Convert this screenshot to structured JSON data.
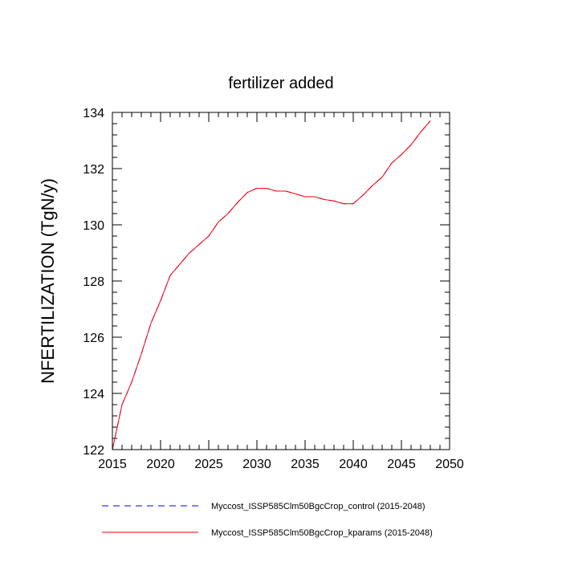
{
  "chart_data": {
    "type": "line",
    "title": "fertilizer added",
    "xlabel": "",
    "ylabel": "NFERTILIZATION  (TgN/y)",
    "xlim": [
      2015,
      2050
    ],
    "ylim": [
      122,
      134
    ],
    "x_ticks": [
      2015,
      2020,
      2025,
      2030,
      2035,
      2040,
      2045,
      2050
    ],
    "y_ticks": [
      122,
      124,
      126,
      128,
      130,
      132,
      134
    ],
    "x_tick_labels": [
      "2015",
      "2020",
      "2025",
      "2030",
      "2035",
      "2040",
      "2045",
      "2050"
    ],
    "y_tick_labels": [
      "122",
      "124",
      "126",
      "128",
      "130",
      "132",
      "134"
    ],
    "grid": false,
    "legend_position": "bottom",
    "x": [
      2015,
      2016,
      2017,
      2018,
      2019,
      2020,
      2021,
      2022,
      2023,
      2024,
      2025,
      2026,
      2027,
      2028,
      2029,
      2030,
      2031,
      2032,
      2033,
      2034,
      2035,
      2036,
      2037,
      2038,
      2039,
      2040,
      2041,
      2042,
      2043,
      2044,
      2045,
      2046,
      2047,
      2048
    ],
    "series": [
      {
        "name": "Myccost_ISSP585Clm50BgcCrop_control (2015-2048)",
        "color": "#0000ff",
        "style": "dashed",
        "values": [
          122.0,
          123.6,
          124.4,
          125.4,
          126.5,
          127.3,
          128.2,
          128.6,
          129.0,
          129.3,
          129.6,
          130.1,
          130.4,
          130.8,
          131.15,
          131.3,
          131.3,
          131.2,
          131.2,
          131.1,
          131.0,
          131.0,
          130.9,
          130.85,
          130.75,
          130.75,
          131.05,
          131.4,
          131.7,
          132.2,
          132.5,
          132.85,
          133.3,
          133.7
        ]
      },
      {
        "name": "Myccost_ISSP585Clm50BgcCrop_kparams (2015-2048)",
        "color": "#ff0000",
        "style": "solid",
        "values": [
          122.0,
          123.6,
          124.4,
          125.4,
          126.5,
          127.3,
          128.2,
          128.6,
          129.0,
          129.3,
          129.6,
          130.1,
          130.4,
          130.8,
          131.15,
          131.3,
          131.3,
          131.2,
          131.2,
          131.1,
          131.0,
          131.0,
          130.9,
          130.85,
          130.75,
          130.75,
          131.05,
          131.4,
          131.7,
          132.2,
          132.5,
          132.85,
          133.3,
          133.7
        ]
      }
    ]
  }
}
